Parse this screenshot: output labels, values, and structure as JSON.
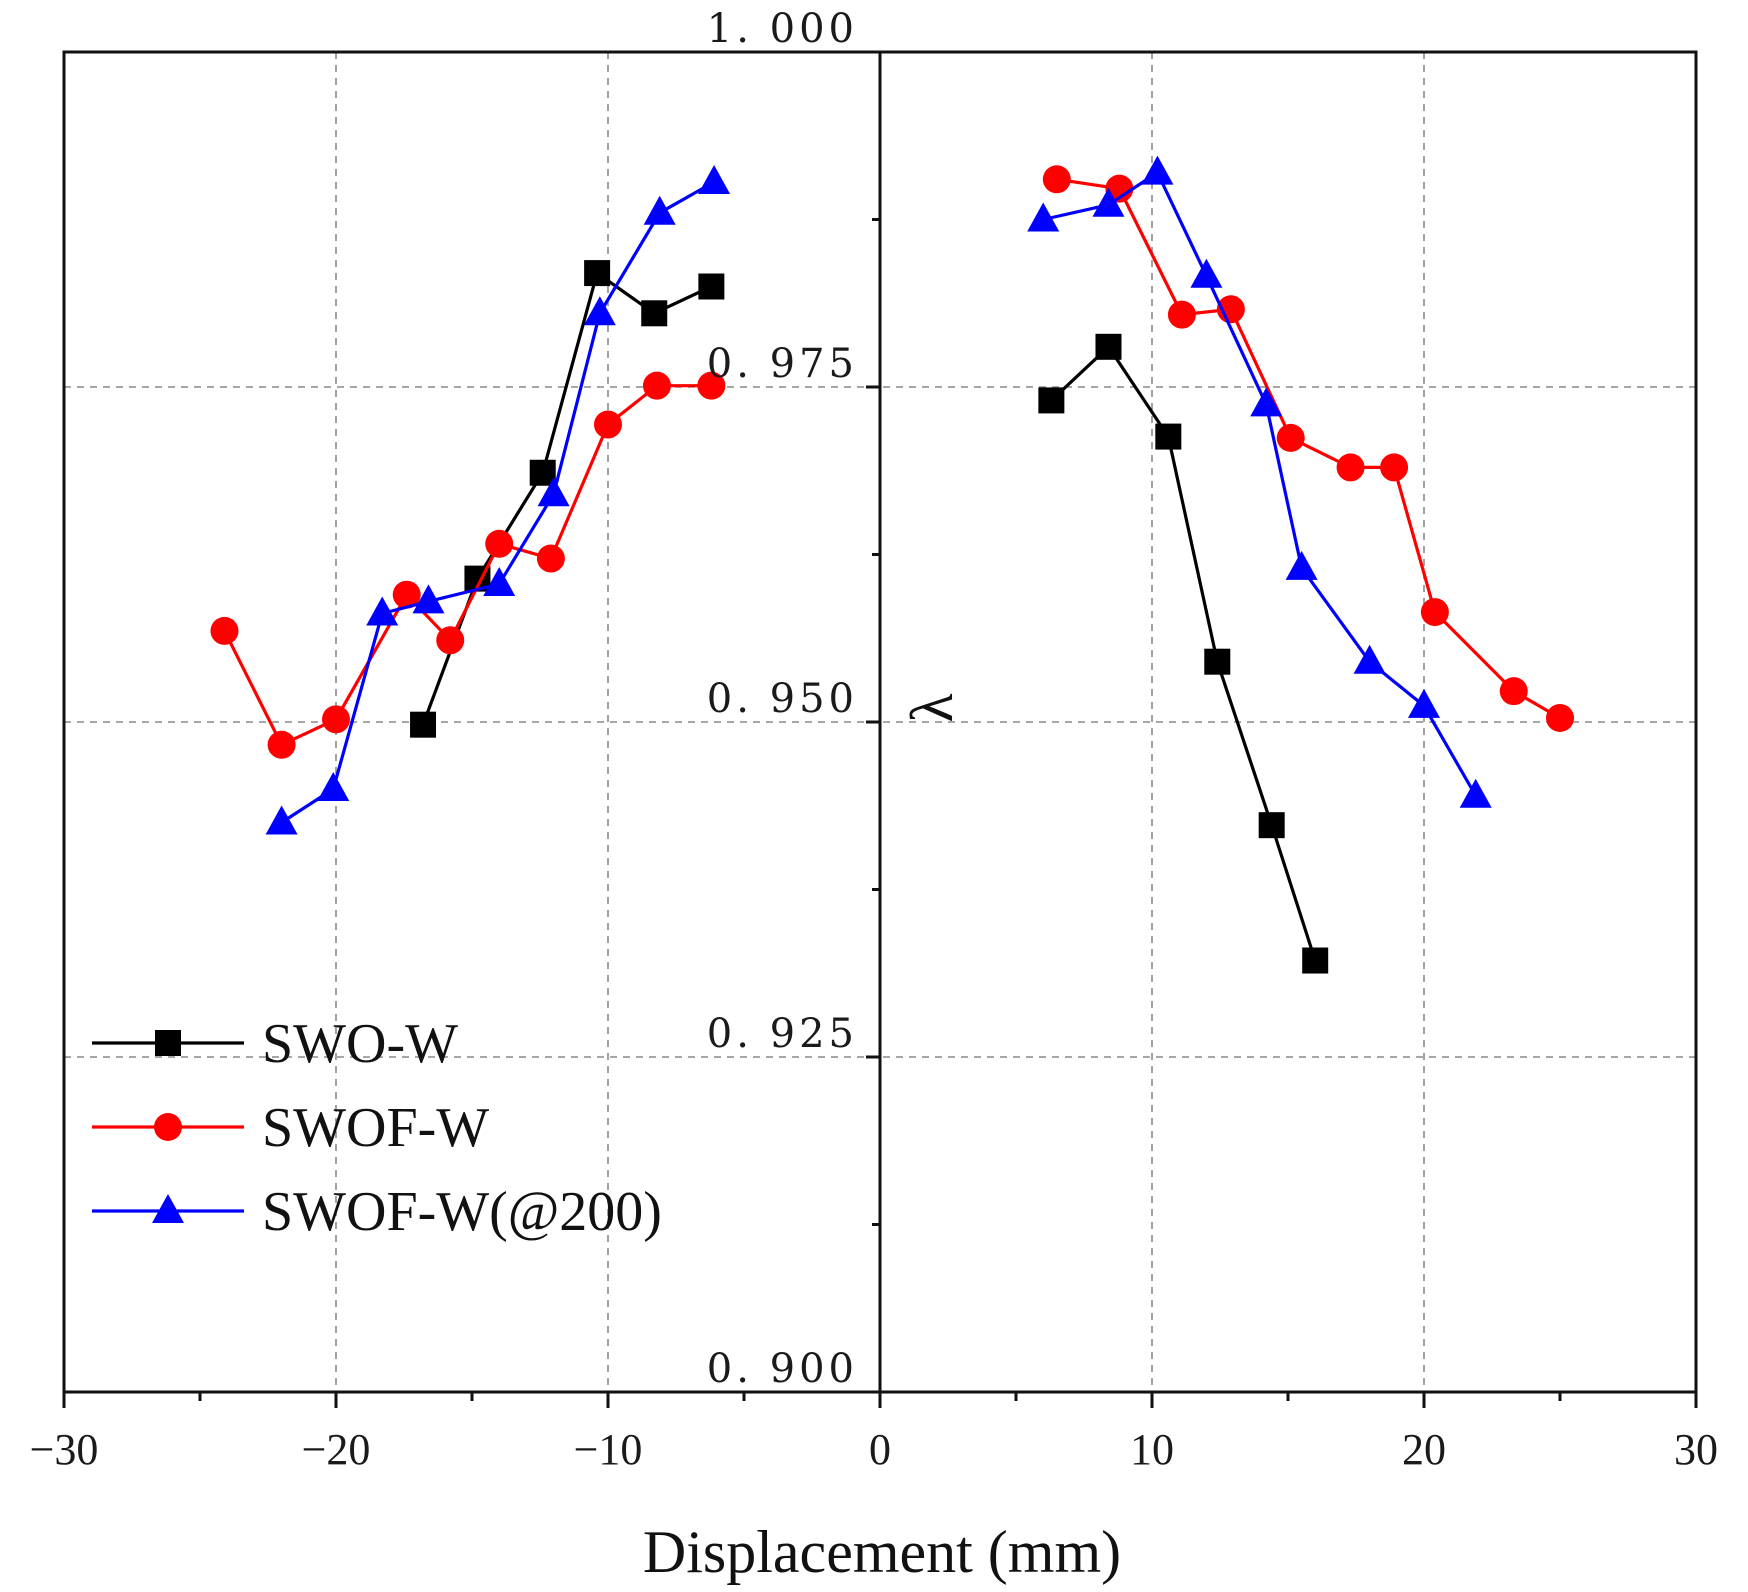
{
  "chart_data": {
    "type": "line",
    "title": "",
    "xlabel": "Displacement (mm)",
    "ylabel": "λ",
    "xlim": [
      -30,
      30
    ],
    "ylim": [
      0.9,
      1.0
    ],
    "x_ticks": [
      "−30",
      "−20",
      "−10",
      "0",
      "10",
      "20",
      "30"
    ],
    "x_tick_values": [
      -30,
      -20,
      -10,
      0,
      10,
      20,
      30
    ],
    "y_ticks": [
      "0. 900",
      "0. 925",
      "0. 950",
      "0. 975",
      "1. 000"
    ],
    "y_tick_values": [
      0.9,
      0.925,
      0.95,
      0.975,
      1.0
    ],
    "grid": true,
    "legend_position": "lower-left",
    "series": [
      {
        "name": "SWO-W",
        "color": "#000000",
        "marker": "square",
        "segments": [
          [
            [
              -16.8,
              0.9498
            ],
            [
              -14.8,
              0.9607
            ],
            [
              -12.4,
              0.9686
            ],
            [
              -10.4,
              0.9835
            ],
            [
              -8.3,
              0.9805
            ],
            [
              -6.2,
              0.9825
            ]
          ],
          [
            [
              6.3,
              0.974
            ],
            [
              8.4,
              0.978
            ],
            [
              10.6,
              0.9713
            ],
            [
              12.4,
              0.9545
            ],
            [
              14.4,
              0.9423
            ],
            [
              16.0,
              0.9322
            ]
          ]
        ]
      },
      {
        "name": "SWOF-W",
        "color": "#ff0000",
        "marker": "circle",
        "segments": [
          [
            [
              -24.1,
              0.9568
            ],
            [
              -22.0,
              0.9483
            ],
            [
              -20.0,
              0.9502
            ],
            [
              -17.4,
              0.9595
            ],
            [
              -15.8,
              0.9561
            ],
            [
              -14.0,
              0.9633
            ],
            [
              -12.1,
              0.9622
            ],
            [
              -10.0,
              0.9722
            ],
            [
              -8.2,
              0.9751
            ],
            [
              -6.2,
              0.9751
            ]
          ],
          [
            [
              6.5,
              0.9905
            ],
            [
              8.8,
              0.9898
            ],
            [
              11.1,
              0.9804
            ],
            [
              12.9,
              0.9808
            ],
            [
              15.1,
              0.9712
            ],
            [
              17.3,
              0.969
            ],
            [
              18.9,
              0.969
            ],
            [
              20.4,
              0.9582
            ],
            [
              23.3,
              0.9523
            ],
            [
              25.0,
              0.9503
            ]
          ]
        ]
      },
      {
        "name": "SWOF-W(@200)",
        "color": "#0000ff",
        "marker": "triangle",
        "segments": [
          [
            [
              -22.0,
              0.9425
            ],
            [
              -20.1,
              0.945
            ],
            [
              -18.3,
              0.9581
            ],
            [
              -16.6,
              0.959
            ],
            [
              -14.0,
              0.9603
            ],
            [
              -12.0,
              0.967
            ],
            [
              -10.3,
              0.9805
            ],
            [
              -8.1,
              0.988
            ],
            [
              -6.1,
              0.9903
            ]
          ],
          [
            [
              6.0,
              0.9875
            ],
            [
              8.4,
              0.9886
            ],
            [
              10.2,
              0.991
            ],
            [
              12.0,
              0.9833
            ],
            [
              14.2,
              0.9737
            ],
            [
              15.5,
              0.9615
            ],
            [
              18.0,
              0.9545
            ],
            [
              20.0,
              0.9512
            ],
            [
              21.9,
              0.9445
            ]
          ]
        ]
      }
    ]
  }
}
